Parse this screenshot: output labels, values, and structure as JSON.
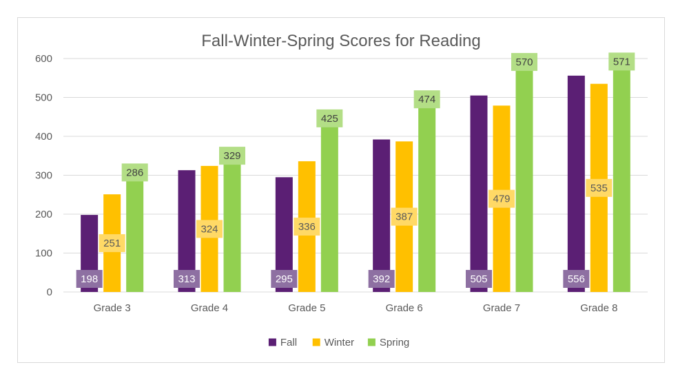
{
  "chart_data": {
    "type": "bar",
    "title": "Fall-Winter-Spring Scores for Reading",
    "xlabel": "",
    "ylabel": "",
    "categories": [
      "Grade 3",
      "Grade 4",
      "Grade 5",
      "Grade 6",
      "Grade 7",
      "Grade 8"
    ],
    "series": [
      {
        "name": "Fall",
        "color": "#5b1f74",
        "label_bg": "#8e70a2",
        "label_fg": "#ffffff",
        "values": [
          198,
          313,
          295,
          392,
          505,
          556
        ]
      },
      {
        "name": "Winter",
        "color": "#ffc000",
        "label_bg": "#ffd966",
        "label_fg": "#595959",
        "values": [
          251,
          324,
          336,
          387,
          479,
          535
        ]
      },
      {
        "name": "Spring",
        "color": "#92d050",
        "label_bg": "#b3de86",
        "label_fg": "#404040",
        "values": [
          286,
          329,
          425,
          474,
          570,
          571
        ]
      }
    ],
    "ylim": [
      0,
      600
    ],
    "yticks": [
      0,
      100,
      200,
      300,
      400,
      500,
      600
    ],
    "grid": true,
    "legend": "bottom",
    "gridline_color": "#d9d9d9"
  }
}
